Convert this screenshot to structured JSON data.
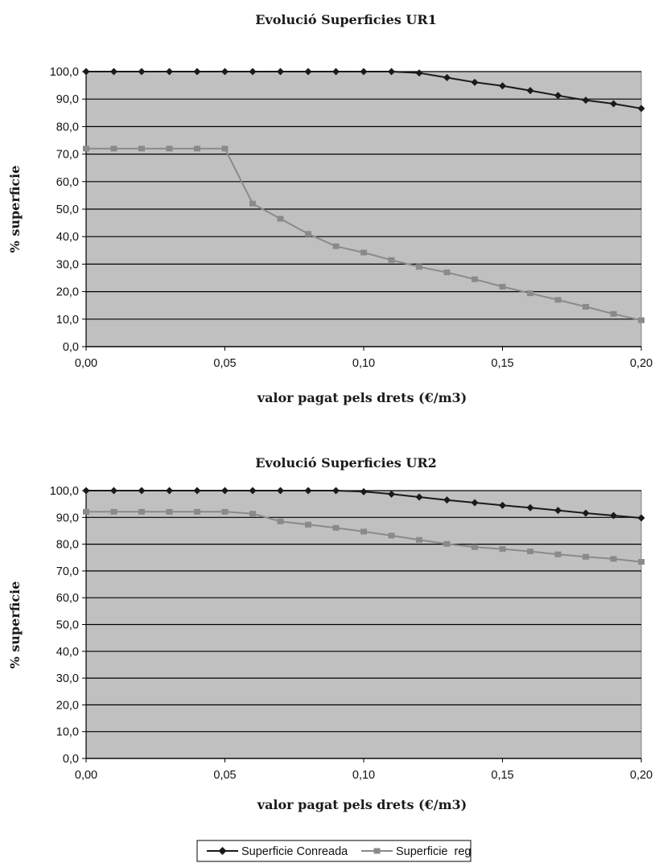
{
  "colors": {
    "plot_bg": "#c0c0c0",
    "gridline": "#000000",
    "series_conreada": "#1a1a1a",
    "series_reg": "#8a8a8a"
  },
  "chart_data": [
    {
      "type": "line",
      "title": "Evolució Superficies UR1",
      "xlabel": "valor pagat pels drets (€/m3)",
      "ylabel": "% superficie",
      "x": [
        0.0,
        0.01,
        0.02,
        0.03,
        0.04,
        0.05,
        0.06,
        0.07,
        0.08,
        0.09,
        0.1,
        0.11,
        0.12,
        0.13,
        0.14,
        0.15,
        0.16,
        0.17,
        0.18,
        0.19,
        0.2
      ],
      "xlim": [
        0,
        0.2
      ],
      "ylim": [
        0,
        100
      ],
      "x_ticks": [
        0,
        0.05,
        0.1,
        0.15,
        0.2
      ],
      "x_tick_labels": [
        "0,00",
        "0,05",
        "0,10",
        "0,15",
        "0,20"
      ],
      "y_ticks": [
        0,
        10,
        20,
        30,
        40,
        50,
        60,
        70,
        80,
        90,
        100
      ],
      "y_tick_labels": [
        "0,0",
        "10,0",
        "20,0",
        "30,0",
        "40,0",
        "50,0",
        "60,0",
        "70,0",
        "80,0",
        "90,0",
        "100,0"
      ],
      "grid": "horizontal",
      "series": [
        {
          "name": "Superficie Conreada",
          "marker": "diamond",
          "values": [
            100,
            100,
            100,
            100,
            100,
            100,
            100,
            100,
            100,
            100,
            100,
            100,
            99.5,
            97.8,
            96.1,
            94.8,
            93.1,
            91.3,
            89.6,
            88.3,
            86.6
          ]
        },
        {
          "name": "Superficie  reg",
          "marker": "square",
          "values": [
            72.0,
            72.0,
            72.0,
            72.0,
            72.0,
            72.0,
            52.0,
            46.5,
            41.0,
            36.5,
            34.2,
            31.5,
            29.0,
            27.0,
            24.5,
            21.8,
            19.4,
            17.0,
            14.5,
            11.9,
            9.6
          ]
        }
      ]
    },
    {
      "type": "line",
      "title": "Evolució Superficies UR2",
      "xlabel": "valor pagat pels drets (€/m3)",
      "ylabel": "% superficie",
      "x": [
        0.0,
        0.01,
        0.02,
        0.03,
        0.04,
        0.05,
        0.06,
        0.07,
        0.08,
        0.09,
        0.1,
        0.11,
        0.12,
        0.13,
        0.14,
        0.15,
        0.16,
        0.17,
        0.18,
        0.19,
        0.2
      ],
      "xlim": [
        0,
        0.2
      ],
      "ylim": [
        0,
        100
      ],
      "x_ticks": [
        0,
        0.05,
        0.1,
        0.15,
        0.2
      ],
      "x_tick_labels": [
        "0,00",
        "0,05",
        "0,10",
        "0,15",
        "0,20"
      ],
      "y_ticks": [
        0,
        10,
        20,
        30,
        40,
        50,
        60,
        70,
        80,
        90,
        100
      ],
      "y_tick_labels": [
        "0,0",
        "10,0",
        "20,0",
        "30,0",
        "40,0",
        "50,0",
        "60,0",
        "70,0",
        "80,0",
        "90,0",
        "100,0"
      ],
      "grid": "horizontal",
      "series": [
        {
          "name": "Superficie Conreada",
          "marker": "diamond",
          "values": [
            100,
            100,
            100,
            100,
            100,
            100,
            100,
            100,
            100,
            100,
            99.6,
            98.7,
            97.6,
            96.5,
            95.5,
            94.5,
            93.6,
            92.6,
            91.6,
            90.7,
            89.8
          ]
        },
        {
          "name": "Superficie  reg",
          "marker": "square",
          "values": [
            92.1,
            92.1,
            92.1,
            92.1,
            92.1,
            92.1,
            91.4,
            88.5,
            87.3,
            86.1,
            84.7,
            83.2,
            81.6,
            80.1,
            78.9,
            78.2,
            77.3,
            76.2,
            75.3,
            74.5,
            73.4
          ]
        }
      ]
    }
  ],
  "legend": {
    "position": "bottom-center",
    "items": [
      {
        "label": "Superficie Conreada",
        "marker": "diamond"
      },
      {
        "label": "Superficie  reg",
        "marker": "square"
      }
    ]
  }
}
